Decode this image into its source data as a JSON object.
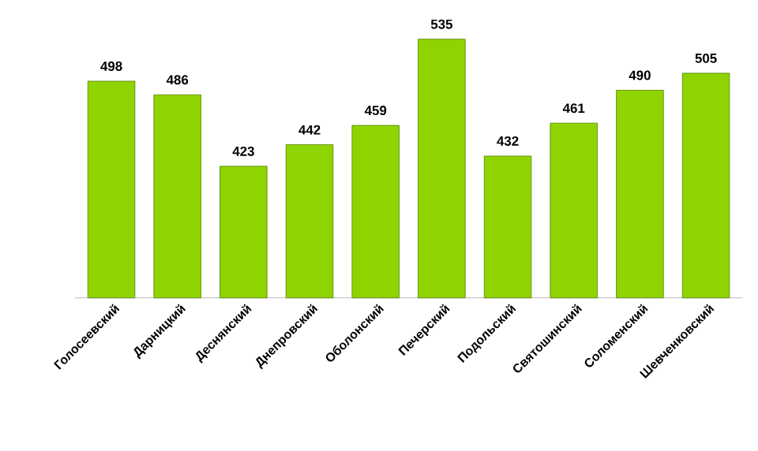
{
  "chart_data": {
    "type": "bar",
    "categories": [
      "Голосеевский",
      "Дарницкий",
      "Деснянский",
      "Днепровский",
      "Оболонский",
      "Печерский",
      "Подольский",
      "Святошинский",
      "Соломенский",
      "Шевченковский"
    ],
    "values": [
      498,
      486,
      423,
      442,
      459,
      535,
      432,
      461,
      490,
      505
    ],
    "color": "#8fd400",
    "ylim": [
      307,
      535
    ],
    "tick_labels": "x",
    "data_labels": true
  }
}
